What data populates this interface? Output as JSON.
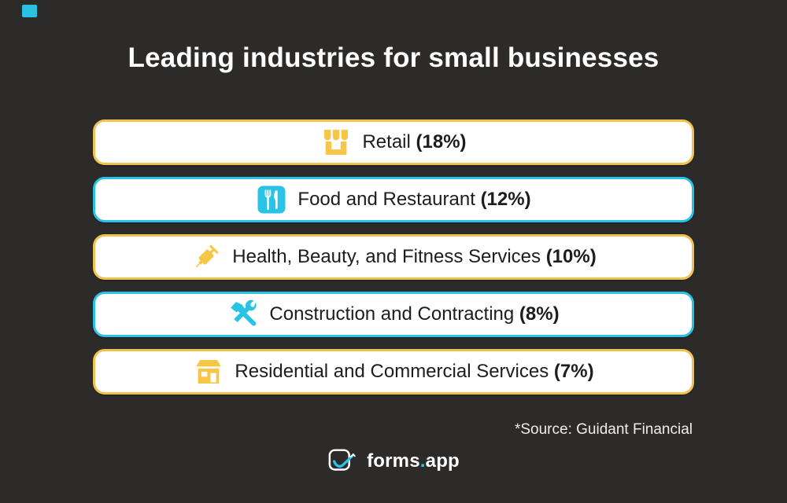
{
  "title": "Leading industries for small businesses",
  "rows": [
    {
      "label": "Retail",
      "pct": "(18%)",
      "icon": "store-icon",
      "theme": "yellow"
    },
    {
      "label": "Food and Restaurant",
      "pct": "(12%)",
      "icon": "utensils-icon",
      "theme": "cyan"
    },
    {
      "label": "Health, Beauty, and Fitness Services",
      "pct": "(10%)",
      "icon": "syringe-icon",
      "theme": "yellow"
    },
    {
      "label": "Construction and Contracting",
      "pct": "(8%)",
      "icon": "tools-icon",
      "theme": "cyan"
    },
    {
      "label": "Residential and Commercial Services",
      "pct": "(7%)",
      "icon": "shop-icon",
      "theme": "yellow"
    }
  ],
  "source_note": "*Source: Guidant Financial",
  "logo": {
    "name": "forms",
    "dot": ".",
    "suffix": "app"
  },
  "colors": {
    "background": "#2c2b2a",
    "yellow": "#f5c244",
    "cyan": "#27c3e6",
    "row_background": "#ffffff",
    "row_text": "#1d1d1b",
    "title_text": "#ffffff",
    "source_text": "#efedeb"
  },
  "chart_data": {
    "type": "bar",
    "title": "Leading industries for small businesses",
    "categories": [
      "Retail",
      "Food and Restaurant",
      "Health, Beauty, and Fitness Services",
      "Construction and Contracting",
      "Residential and Commercial Services"
    ],
    "values": [
      18,
      12,
      10,
      8,
      7
    ],
    "unit": "percent",
    "xlabel": "",
    "ylabel": "",
    "annotations": [
      "*Source: Guidant Financial"
    ],
    "legend": "none",
    "grid": false
  }
}
